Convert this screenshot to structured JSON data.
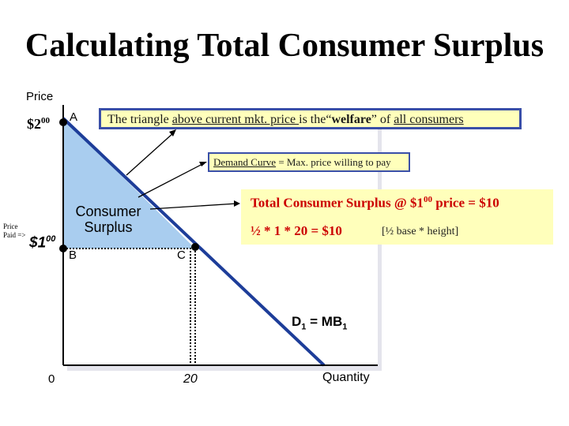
{
  "title": "Calculating Total Consumer Surplus",
  "axis": {
    "y_label": "Price",
    "x_label": "Quantity",
    "origin": "0",
    "x_tick_20": "20"
  },
  "price_high": {
    "dollar": "$2",
    "cents": "00"
  },
  "price_paid": {
    "label_line1": "Price",
    "label_line2": "Paid =>",
    "dollar": "$1",
    "cents": "00"
  },
  "points": {
    "a": "A",
    "b": "B",
    "c": "C"
  },
  "welfare_note": {
    "part1": "The triangle ",
    "part2": "above current mkt. price ",
    "part3": "is the“",
    "part4": "welfare",
    "part5": "” of ",
    "part6": "all consumers"
  },
  "demand_note": {
    "part1": "Demand Curve",
    "part2": " = Max. price willing to pay"
  },
  "surplus_label": {
    "line1": "Consumer",
    "line2": "Surplus"
  },
  "total_surplus": {
    "heading": "Total Consumer Surplus @ $1",
    "heading_cents": "00",
    "heading_tail": " price = $10",
    "formula": "½ * 1 * 20 = $10",
    "formula_note": "[½ base * height]"
  },
  "demand_label": {
    "d": "D",
    "sub1": "1",
    "eq": " = MB",
    "sub2": "1"
  },
  "colors": {
    "surplus_fill": "#a9cdef",
    "curve": "#1d3d99",
    "box_fill": "#ffffbb",
    "box_border": "#3a4fa8",
    "highlight_text": "#cc0000"
  }
}
